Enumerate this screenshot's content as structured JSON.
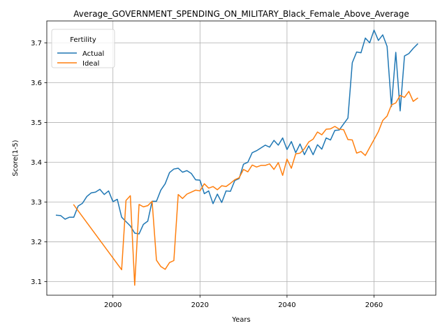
{
  "chart_data": {
    "type": "line",
    "title": "Average_GOVERNMENT_SPENDING_ON_MILITARY_Black_Female_Above_Average",
    "xlabel": "Years",
    "ylabel": "Score(1-5)",
    "xlim": [
      1984.8,
      2074.2
    ],
    "ylim": [
      3.066,
      3.755
    ],
    "xticks": [
      2000,
      2020,
      2040,
      2060
    ],
    "yticks": [
      3.1,
      3.2,
      3.3,
      3.4,
      3.5,
      3.6,
      3.7
    ],
    "xtick_labels": [
      "2000",
      "2020",
      "2040",
      "2060"
    ],
    "ytick_labels": [
      "3.1",
      "3.2",
      "3.3",
      "3.4",
      "3.5",
      "3.6",
      "3.7"
    ],
    "grid": true,
    "legend": {
      "title": "Fertility",
      "placement": "top-left"
    },
    "series": [
      {
        "name": "Actual",
        "color": "#1f77b4",
        "points": [
          [
            1987,
            3.267
          ],
          [
            1988,
            3.266
          ],
          [
            1989,
            3.257
          ],
          [
            1990,
            3.262
          ],
          [
            1991,
            3.262
          ],
          [
            1992,
            3.29
          ],
          [
            1993,
            3.297
          ],
          [
            1994,
            3.314
          ],
          [
            1995,
            3.323
          ],
          [
            1996,
            3.325
          ],
          [
            1997,
            3.332
          ],
          [
            1998,
            3.319
          ],
          [
            1999,
            3.328
          ],
          [
            2000,
            3.301
          ],
          [
            2001,
            3.307
          ],
          [
            2002,
            3.262
          ],
          [
            2003,
            3.251
          ],
          [
            2004,
            3.24
          ],
          [
            2005,
            3.222
          ],
          [
            2006,
            3.22
          ],
          [
            2007,
            3.244
          ],
          [
            2008,
            3.252
          ],
          [
            2009,
            3.302
          ],
          [
            2010,
            3.302
          ],
          [
            2011,
            3.33
          ],
          [
            2012,
            3.346
          ],
          [
            2013,
            3.374
          ],
          [
            2014,
            3.383
          ],
          [
            2015,
            3.385
          ],
          [
            2016,
            3.375
          ],
          [
            2017,
            3.379
          ],
          [
            2018,
            3.372
          ],
          [
            2019,
            3.356
          ],
          [
            2020,
            3.355
          ],
          [
            2021,
            3.321
          ],
          [
            2022,
            3.328
          ],
          [
            2023,
            3.296
          ],
          [
            2024,
            3.32
          ],
          [
            2025,
            3.299
          ],
          [
            2026,
            3.328
          ],
          [
            2027,
            3.327
          ],
          [
            2028,
            3.354
          ],
          [
            2029,
            3.359
          ],
          [
            2030,
            3.395
          ],
          [
            2031,
            3.4
          ],
          [
            2032,
            3.424
          ],
          [
            2033,
            3.429
          ],
          [
            2034,
            3.436
          ],
          [
            2035,
            3.443
          ],
          [
            2036,
            3.438
          ],
          [
            2037,
            3.455
          ],
          [
            2038,
            3.443
          ],
          [
            2039,
            3.461
          ],
          [
            2040,
            3.432
          ],
          [
            2041,
            3.452
          ],
          [
            2042,
            3.424
          ],
          [
            2043,
            3.446
          ],
          [
            2044,
            3.419
          ],
          [
            2045,
            3.441
          ],
          [
            2046,
            3.419
          ],
          [
            2047,
            3.444
          ],
          [
            2048,
            3.433
          ],
          [
            2049,
            3.461
          ],
          [
            2050,
            3.456
          ],
          [
            2051,
            3.48
          ],
          [
            2052,
            3.481
          ],
          [
            2053,
            3.496
          ],
          [
            2054,
            3.511
          ],
          [
            2055,
            3.65
          ],
          [
            2056,
            3.677
          ],
          [
            2057,
            3.675
          ],
          [
            2058,
            3.712
          ],
          [
            2059,
            3.7
          ],
          [
            2060,
            3.732
          ],
          [
            2061,
            3.706
          ],
          [
            2062,
            3.72
          ],
          [
            2063,
            3.691
          ],
          [
            2064,
            3.54
          ],
          [
            2065,
            3.676
          ],
          [
            2066,
            3.529
          ],
          [
            2067,
            3.667
          ],
          [
            2068,
            3.673
          ],
          [
            2069,
            3.686
          ],
          [
            2070,
            3.697
          ]
        ]
      },
      {
        "name": "Ideal",
        "color": "#ff7f0e",
        "points": [
          [
            1991,
            3.293
          ],
          [
            2002,
            3.13
          ],
          [
            2003,
            3.304
          ],
          [
            2004,
            3.316
          ],
          [
            2005,
            3.091
          ],
          [
            2006,
            3.294
          ],
          [
            2007,
            3.288
          ],
          [
            2008,
            3.291
          ],
          [
            2009,
            3.302
          ],
          [
            2010,
            3.154
          ],
          [
            2011,
            3.138
          ],
          [
            2012,
            3.131
          ],
          [
            2013,
            3.148
          ],
          [
            2014,
            3.153
          ],
          [
            2015,
            3.319
          ],
          [
            2016,
            3.309
          ],
          [
            2017,
            3.32
          ],
          [
            2018,
            3.325
          ],
          [
            2019,
            3.33
          ],
          [
            2020,
            3.328
          ],
          [
            2021,
            3.346
          ],
          [
            2022,
            3.335
          ],
          [
            2023,
            3.339
          ],
          [
            2024,
            3.331
          ],
          [
            2025,
            3.341
          ],
          [
            2026,
            3.339
          ],
          [
            2027,
            3.347
          ],
          [
            2028,
            3.356
          ],
          [
            2029,
            3.361
          ],
          [
            2030,
            3.382
          ],
          [
            2031,
            3.376
          ],
          [
            2032,
            3.393
          ],
          [
            2033,
            3.388
          ],
          [
            2034,
            3.392
          ],
          [
            2035,
            3.392
          ],
          [
            2036,
            3.396
          ],
          [
            2037,
            3.382
          ],
          [
            2038,
            3.399
          ],
          [
            2039,
            3.367
          ],
          [
            2040,
            3.408
          ],
          [
            2041,
            3.385
          ],
          [
            2042,
            3.421
          ],
          [
            2043,
            3.423
          ],
          [
            2044,
            3.434
          ],
          [
            2045,
            3.451
          ],
          [
            2046,
            3.458
          ],
          [
            2047,
            3.476
          ],
          [
            2048,
            3.469
          ],
          [
            2049,
            3.483
          ],
          [
            2050,
            3.484
          ],
          [
            2051,
            3.49
          ],
          [
            2052,
            3.483
          ],
          [
            2053,
            3.482
          ],
          [
            2054,
            3.457
          ],
          [
            2055,
            3.456
          ],
          [
            2056,
            3.423
          ],
          [
            2057,
            3.427
          ],
          [
            2058,
            3.417
          ],
          [
            2059,
            3.437
          ],
          [
            2060,
            3.457
          ],
          [
            2061,
            3.477
          ],
          [
            2062,
            3.505
          ],
          [
            2063,
            3.516
          ],
          [
            2064,
            3.544
          ],
          [
            2065,
            3.549
          ],
          [
            2066,
            3.568
          ],
          [
            2067,
            3.563
          ],
          [
            2068,
            3.578
          ],
          [
            2069,
            3.553
          ],
          [
            2070,
            3.561
          ]
        ]
      }
    ]
  }
}
